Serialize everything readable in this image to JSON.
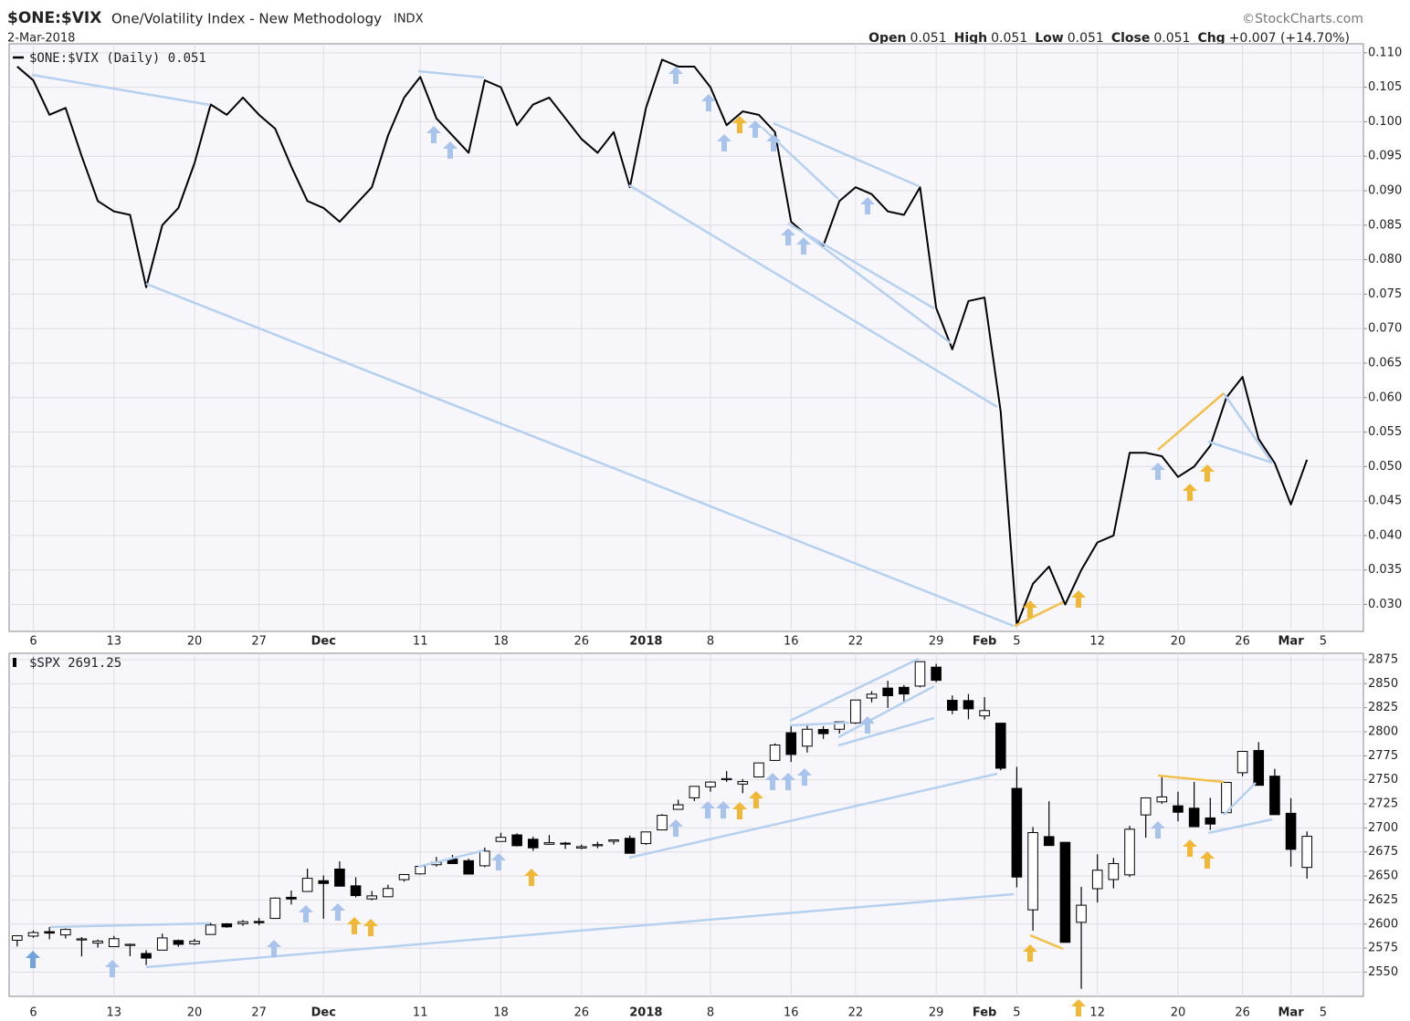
{
  "header": {
    "symbol": "$ONE:$VIX",
    "name": "One/Volatility Index - New Methodology",
    "exchange": "INDX",
    "date": "2-Mar-2018",
    "source": "©StockCharts.com",
    "quote": [
      [
        "Open",
        "0.051"
      ],
      [
        "High",
        "0.051"
      ],
      [
        "Low",
        "0.051"
      ],
      [
        "Close",
        "0.051"
      ],
      [
        "Chg",
        "+0.007 (+14.70%)"
      ]
    ]
  },
  "chart_data": [
    {
      "type": "line",
      "categories": [
        null,
        "6",
        null,
        null,
        null,
        null,
        "13",
        null,
        null,
        null,
        null,
        "20",
        null,
        null,
        null,
        "27",
        null,
        null,
        null,
        "Dec",
        null,
        null,
        null,
        null,
        null,
        "11",
        null,
        null,
        null,
        null,
        "18",
        null,
        null,
        null,
        null,
        "26",
        null,
        null,
        null,
        "2018",
        null,
        null,
        null,
        "8",
        null,
        null,
        null,
        null,
        "16",
        null,
        null,
        null,
        "22",
        null,
        null,
        null,
        null,
        "29",
        null,
        null,
        "Feb",
        null,
        "5",
        null,
        null,
        null,
        null,
        "12",
        null,
        null,
        null,
        null,
        "20",
        null,
        null,
        null,
        "26",
        null,
        null,
        "Mar",
        null,
        "5",
        null,
        null
      ],
      "series": [
        {
          "name": "$ONE:$VIX (Daily) 0.051",
          "color": "#000000",
          "values": [
            0.108,
            0.106,
            0.101,
            0.102,
            0.095,
            0.0885,
            0.087,
            0.0865,
            0.076,
            0.085,
            0.0875,
            0.094,
            0.1025,
            0.101,
            0.1035,
            0.101,
            0.099,
            0.0935,
            0.0885,
            0.0875,
            0.0855,
            0.088,
            0.0905,
            0.098,
            0.1035,
            0.1065,
            0.1005,
            0.098,
            0.0955,
            0.106,
            0.105,
            0.0995,
            0.1025,
            0.1035,
            0.1005,
            0.0975,
            0.0955,
            0.0985,
            0.0905,
            0.102,
            0.109,
            0.108,
            0.108,
            0.105,
            0.0995,
            0.1015,
            0.101,
            0.0985,
            0.0855,
            0.0835,
            0.082,
            0.0885,
            0.0905,
            0.0895,
            0.087,
            0.0865,
            0.0905,
            0.073,
            0.067,
            0.074,
            0.0745,
            0.058,
            0.027,
            0.033,
            0.0355,
            0.03,
            0.035,
            0.039,
            0.04,
            0.052,
            0.052,
            0.0515,
            0.0485,
            0.05,
            0.053,
            0.06,
            0.063,
            0.054,
            0.0505,
            0.0445,
            0.051,
            null,
            null,
            null
          ]
        }
      ],
      "ylim": [
        0.0261,
        0.1113
      ],
      "yticks": [
        {
          "value": 0.03,
          "label": "0.030"
        },
        {
          "value": 0.035,
          "label": "0.035"
        },
        {
          "value": 0.04,
          "label": "0.040"
        },
        {
          "value": 0.045,
          "label": "0.045"
        },
        {
          "value": 0.05,
          "label": "0.050"
        },
        {
          "value": 0.055,
          "label": "0.055"
        },
        {
          "value": 0.06,
          "label": "0.060"
        },
        {
          "value": 0.065,
          "label": "0.065"
        },
        {
          "value": 0.07,
          "label": "0.070"
        },
        {
          "value": 0.075,
          "label": "0.075"
        },
        {
          "value": 0.08,
          "label": "0.080"
        },
        {
          "value": 0.085,
          "label": "0.085"
        },
        {
          "value": 0.09,
          "label": "0.090"
        },
        {
          "value": 0.095,
          "label": "0.095"
        },
        {
          "value": 0.1,
          "label": "0.100"
        },
        {
          "value": 0.105,
          "label": "0.105"
        },
        {
          "value": 0.11,
          "label": "0.110"
        }
      ],
      "grid": true
    },
    {
      "type": "candlestick",
      "categories": [
        null,
        "6",
        null,
        null,
        null,
        null,
        "13",
        null,
        null,
        null,
        null,
        "20",
        null,
        null,
        null,
        "27",
        null,
        null,
        null,
        "Dec",
        null,
        null,
        null,
        null,
        null,
        "11",
        null,
        null,
        null,
        null,
        "18",
        null,
        null,
        null,
        null,
        "26",
        null,
        null,
        null,
        "2018",
        null,
        null,
        null,
        "8",
        null,
        null,
        null,
        null,
        "16",
        null,
        null,
        null,
        "22",
        null,
        null,
        null,
        null,
        "29",
        null,
        null,
        "Feb",
        null,
        "5",
        null,
        null,
        null,
        null,
        "12",
        null,
        null,
        null,
        null,
        "20",
        null,
        null,
        null,
        "26",
        null,
        null,
        "Mar",
        null,
        "5",
        null,
        null
      ],
      "series": [
        {
          "name": "$SPX 2691.25",
          "open": [
            2583.2,
            2587.5,
            2592.1,
            2588.7,
            2584.0,
            2580.2,
            2576.5,
            2577.8,
            2569.4,
            2572.9,
            2582.9,
            2579.5,
            2589.2,
            2600.3,
            2600.4,
            2602.7,
            2605.9,
            2627.8,
            2633.9,
            2645.1,
            2657.2,
            2639.8,
            2626.2,
            2628.4,
            2646.2,
            2652.2,
            2661.7,
            2667.6,
            2665.9,
            2660.6,
            2685.9,
            2692.7,
            2688.2,
            2683.0,
            2684.2,
            2679.1,
            2682.1,
            2686.1,
            2689.2,
            2683.7,
            2697.9,
            2719.3,
            2731.3,
            2742.7,
            2751.2,
            2745.6,
            2752.97,
            2770.2,
            2798.96,
            2784.99,
            2802.4,
            2802.6,
            2809.2,
            2835.1,
            2845.4,
            2846.2,
            2847.5,
            2867.2,
            2832.7,
            2832.4,
            2816.5,
            2808.9,
            2741.1,
            2614.8,
            2690.95,
            2685.0,
            2601.8,
            2636.8,
            2646.3,
            2651.2,
            2713.5,
            2727.1,
            2722.99,
            2720.5,
            2710.4,
            2715.8,
            2757.4,
            2780.5,
            2753.8,
            2715.2,
            2658.9,
            null,
            null,
            null
          ],
          "high": [
            2588.4,
            2593.4,
            2597.0,
            2595.5,
            2586.5,
            2583.8,
            2587.7,
            2579.7,
            2572.8,
            2590.1,
            2583.9,
            2584.6,
            2601.2,
            2600.9,
            2604.2,
            2606.4,
            2627.7,
            2634.9,
            2657.7,
            2650.6,
            2665.2,
            2648.7,
            2634.4,
            2640.9,
            2651.7,
            2660.3,
            2669.7,
            2671.9,
            2668.1,
            2679.6,
            2694.97,
            2694.4,
            2691.0,
            2692.6,
            2685.4,
            2682.7,
            2685.6,
            2687.7,
            2692.1,
            2695.9,
            2714.4,
            2729.3,
            2743.5,
            2748.5,
            2759.1,
            2750.8,
            2767.6,
            2787.9,
            2807.5,
            2807.0,
            2805.8,
            2810.3,
            2833.0,
            2842.2,
            2852.97,
            2848.6,
            2872.9,
            2870.6,
            2837.8,
            2839.3,
            2835.96,
            2808.9,
            2763.4,
            2701.0,
            2727.7,
            2685.3,
            2638.7,
            2672.6,
            2668.8,
            2702.1,
            2731.5,
            2754.4,
            2737.6,
            2747.8,
            2731.3,
            2747.8,
            2780.0,
            2789.2,
            2761.5,
            2730.9,
            2696.3,
            null,
            null,
            null
          ],
          "low": [
            2576.8,
            2585.7,
            2584.1,
            2585.0,
            2566.3,
            2575.6,
            2576.5,
            2566.6,
            2557.4,
            2572.9,
            2576.3,
            2578.2,
            2589.2,
            2596.1,
            2598.1,
            2598.9,
            2605.4,
            2620.3,
            2633.9,
            2605.5,
            2639.3,
            2627.7,
            2624.8,
            2628.4,
            2644.1,
            2651.5,
            2659.8,
            2662.9,
            2652.0,
            2659.1,
            2685.9,
            2680.7,
            2676.1,
            2682.4,
            2678.1,
            2677.96,
            2678.9,
            2682.7,
            2673.6,
            2682.4,
            2697.8,
            2719.1,
            2727.9,
            2737.6,
            2747.9,
            2736.1,
            2752.8,
            2769.6,
            2768.6,
            2778.4,
            2792.6,
            2798.1,
            2808.1,
            2830.6,
            2824.8,
            2830.9,
            2846.2,
            2851.5,
            2818.3,
            2813.0,
            2812.7,
            2759.97,
            2638.2,
            2593.1,
            2681.3,
            2580.6,
            2532.7,
            2622.4,
            2637.1,
            2648.9,
            2689.8,
            2725.1,
            2706.8,
            2701.3,
            2697.8,
            2715.8,
            2753.8,
            2744.2,
            2713.5,
            2659.7,
            2647.3,
            null,
            null,
            null
          ],
          "close": [
            2587.8,
            2591.1,
            2590.6,
            2594.4,
            2584.6,
            2582.3,
            2584.8,
            2578.9,
            2564.6,
            2585.6,
            2578.9,
            2582.1,
            2599.0,
            2597.1,
            2602.4,
            2601.4,
            2627.0,
            2626.1,
            2647.6,
            2642.2,
            2639.4,
            2629.6,
            2629.3,
            2637.0,
            2651.5,
            2660.0,
            2664.1,
            2662.9,
            2652.0,
            2675.8,
            2690.2,
            2681.5,
            2679.3,
            2684.6,
            2683.3,
            2680.5,
            2682.6,
            2687.5,
            2673.6,
            2695.8,
            2713.1,
            2724.0,
            2743.2,
            2747.7,
            2751.3,
            2748.2,
            2767.6,
            2786.2,
            2776.4,
            2802.6,
            2798.0,
            2810.3,
            2833.0,
            2839.1,
            2837.5,
            2839.3,
            2872.9,
            2853.5,
            2822.4,
            2823.8,
            2822.0,
            2762.1,
            2648.9,
            2695.1,
            2681.7,
            2581.0,
            2619.6,
            2656.0,
            2662.9,
            2698.6,
            2731.2,
            2732.2,
            2716.3,
            2701.3,
            2704.0,
            2747.3,
            2779.6,
            2744.3,
            2713.8,
            2677.7,
            2691.25,
            null,
            null,
            null
          ]
        }
      ],
      "ylim": [
        2524.8,
        2881.6
      ],
      "yticks": [
        2550,
        2575,
        2600,
        2625,
        2650,
        2675,
        2700,
        2725,
        2750,
        2775,
        2800,
        2825,
        2850,
        2875
      ],
      "grid": true
    }
  ]
}
